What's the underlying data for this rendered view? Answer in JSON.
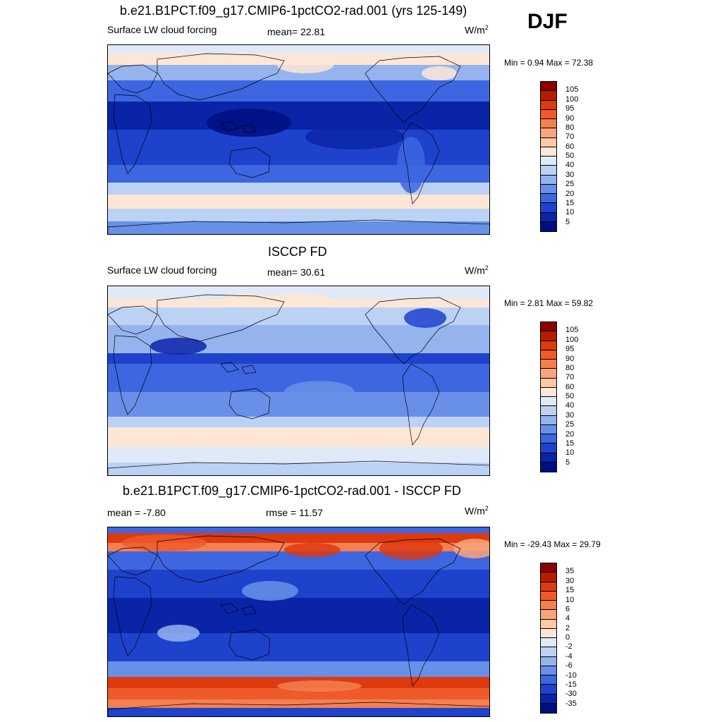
{
  "season": "DJF",
  "panels": [
    {
      "title": "b.e21.B1PCT.f09_g17.CMIP6-1pctCO2-rad.001 (yrs 125-149)",
      "left_label": "Surface LW cloud forcing",
      "center_label": "mean=  22.81",
      "units": "W/m",
      "units_sup": "2",
      "minmax": "Min =   0.94 Max =  72.38",
      "colorbar": {
        "labels": [
          "105",
          "100",
          "95",
          "90",
          "80",
          "70",
          "60",
          "50",
          "40",
          "30",
          "25",
          "20",
          "15",
          "10",
          "5"
        ],
        "colors": [
          "#8b0000",
          "#b71c00",
          "#dd3a10",
          "#ef5a2a",
          "#f47f50",
          "#f8a57c",
          "#fbc9a8",
          "#fde6d6",
          "#dfe9f8",
          "#bcd2f4",
          "#95b4ee",
          "#6890e8",
          "#3d66e0",
          "#1f42cc",
          "#0a24a8",
          "#000e80"
        ]
      },
      "map_style": "model"
    },
    {
      "title": "ISCCP FD",
      "left_label": "Surface LW cloud forcing",
      "center_label": "mean=  30.61",
      "units": "W/m",
      "units_sup": "2",
      "minmax": "Min =   2.81 Max =  59.82",
      "colorbar": {
        "labels": [
          "105",
          "100",
          "95",
          "90",
          "80",
          "70",
          "60",
          "50",
          "40",
          "30",
          "25",
          "20",
          "15",
          "10",
          "5"
        ],
        "colors": [
          "#8b0000",
          "#b71c00",
          "#dd3a10",
          "#ef5a2a",
          "#f47f50",
          "#f8a57c",
          "#fbc9a8",
          "#fde6d6",
          "#dfe9f8",
          "#bcd2f4",
          "#95b4ee",
          "#6890e8",
          "#3d66e0",
          "#1f42cc",
          "#0a24a8",
          "#000e80"
        ]
      },
      "map_style": "obs"
    },
    {
      "title": "b.e21.B1PCT.f09_g17.CMIP6-1pctCO2-rad.001 - ISCCP FD",
      "left_label": "mean =  -7.80",
      "center_label": "rmse =  11.57",
      "units": "W/m",
      "units_sup": "2",
      "minmax": "Min = -29.43 Max =  29.79",
      "colorbar": {
        "labels": [
          "35",
          "30",
          "15",
          "10",
          "6",
          "4",
          "2",
          "0",
          "-2",
          "-4",
          "-6",
          "-10",
          "-15",
          "-30",
          "-35"
        ],
        "colors": [
          "#8b0000",
          "#b71c00",
          "#dd3a10",
          "#ef5a2a",
          "#f47f50",
          "#f8a57c",
          "#fbc9a8",
          "#fde6d6",
          "#dfe9f8",
          "#bcd2f4",
          "#95b4ee",
          "#6890e8",
          "#3d66e0",
          "#1f42cc",
          "#0a24a8",
          "#000e80"
        ]
      },
      "map_style": "diff"
    }
  ]
}
